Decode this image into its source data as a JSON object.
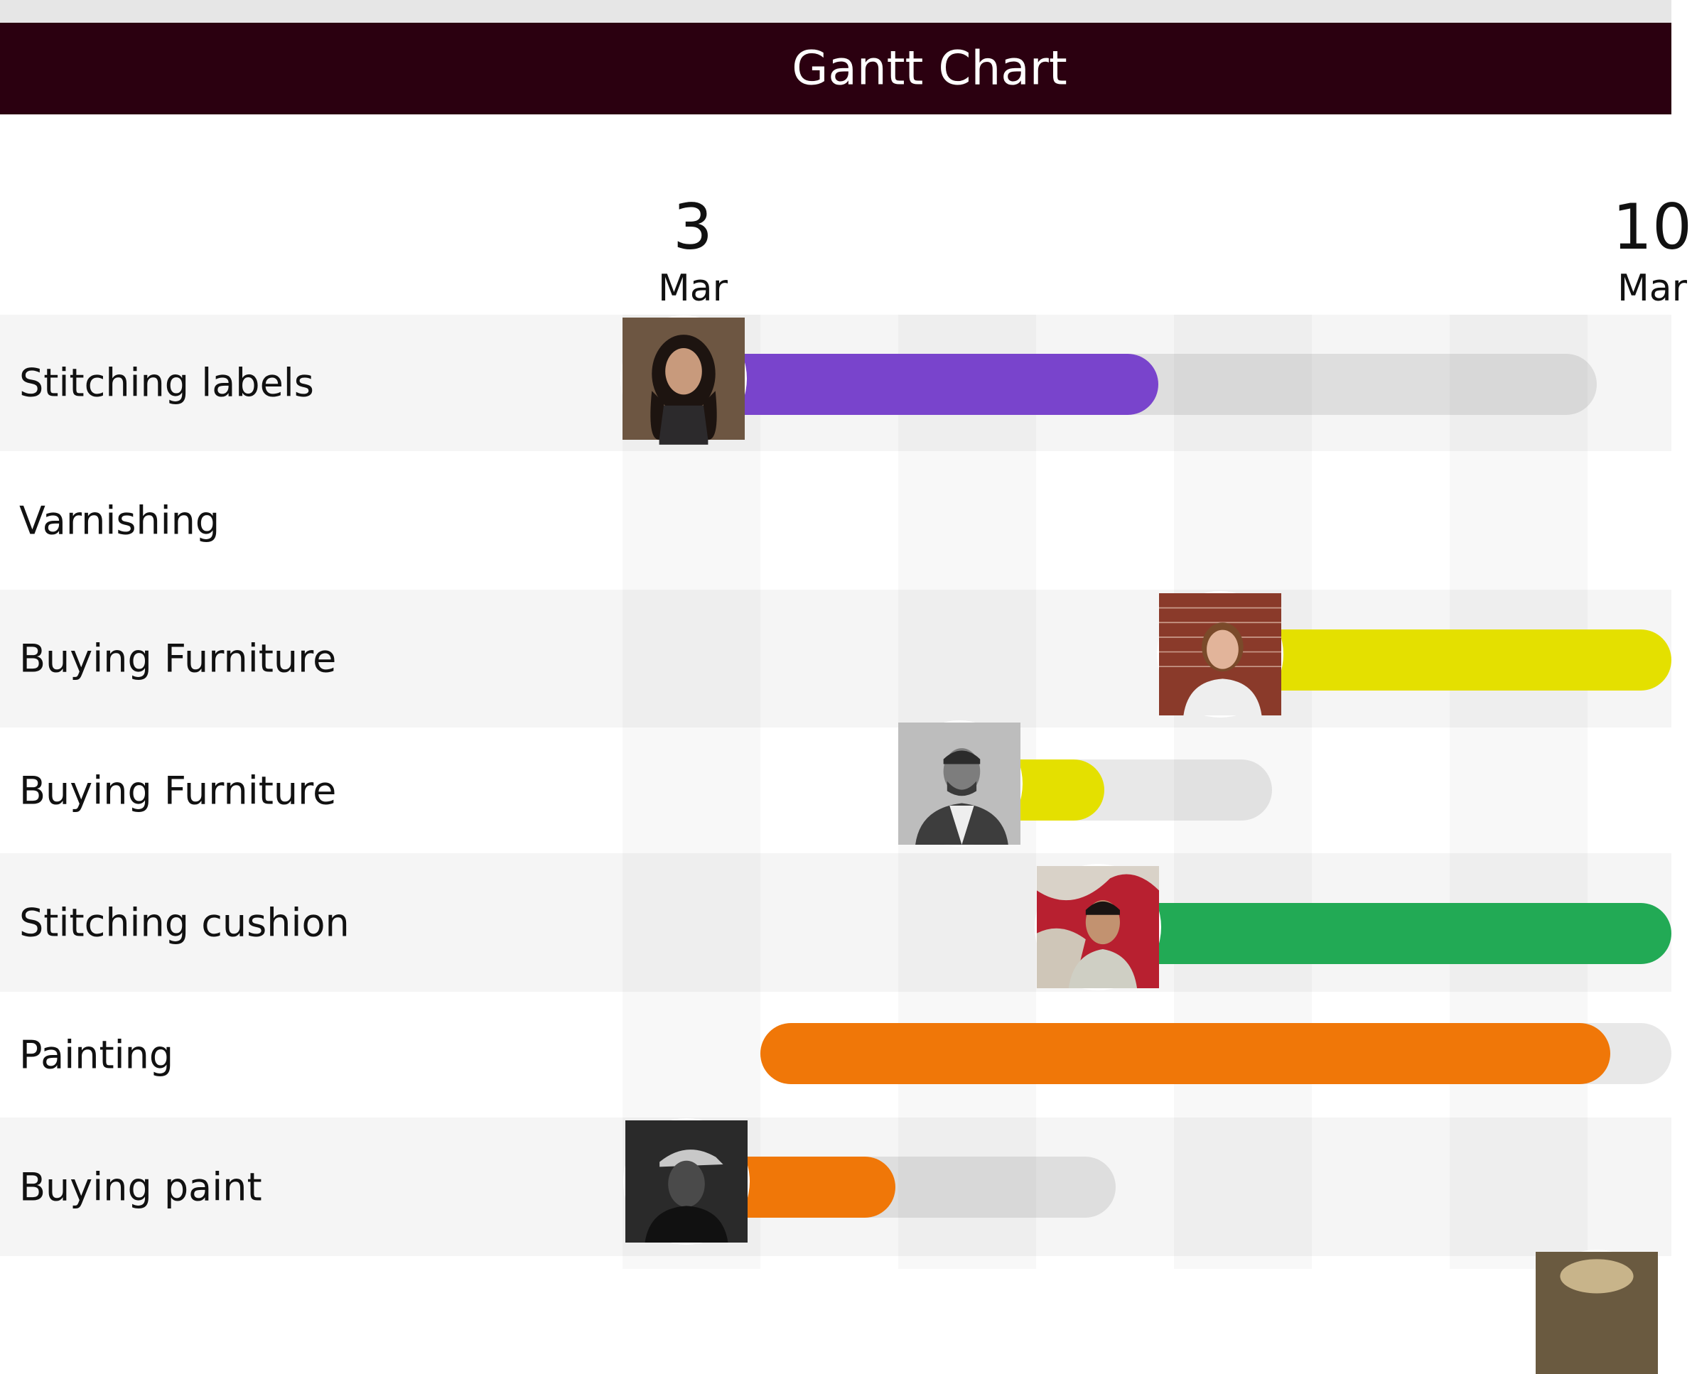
{
  "header": {
    "title": "Gantt Chart"
  },
  "timeline": {
    "dates": [
      {
        "day": "3",
        "month": "Mar"
      },
      {
        "day": "10",
        "month": "Mar"
      }
    ]
  },
  "tasks": [
    {
      "label": "Stitching labels",
      "color": "#7944cc",
      "avatar": "woman-long-dark-hair-avatar"
    },
    {
      "label": "Varnishing"
    },
    {
      "label": "Buying Furniture",
      "color": "#e4e000",
      "avatar": "woman-brick-wall-avatar"
    },
    {
      "label": "Buying Furniture",
      "color": "#e4e000",
      "avatar": "man-grayscale-avatar"
    },
    {
      "label": "Stitching cushion",
      "color": "#22aa55",
      "avatar": "man-red-background-avatar"
    },
    {
      "label": "Painting",
      "color": "#f07708"
    },
    {
      "label": "Buying paint",
      "color": "#f07708",
      "avatar": "man-cap-avatar"
    }
  ]
}
